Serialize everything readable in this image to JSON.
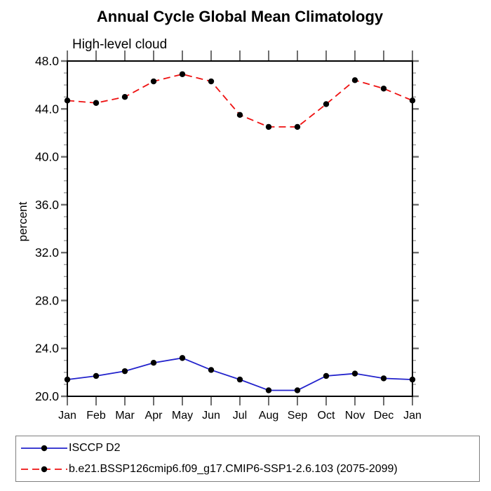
{
  "chart_data": {
    "type": "line",
    "title": "Annual Cycle Global Mean Climatology",
    "subtitle": "High-level cloud",
    "ylabel": "percent",
    "xlabel": "",
    "categories": [
      "Jan",
      "Feb",
      "Mar",
      "Apr",
      "May",
      "Jun",
      "Jul",
      "Aug",
      "Sep",
      "Oct",
      "Nov",
      "Dec",
      "Jan"
    ],
    "ylim": [
      20.0,
      48.0
    ],
    "y_major_ticks": [
      20.0,
      24.0,
      28.0,
      32.0,
      36.0,
      40.0,
      44.0,
      48.0
    ],
    "y_tick_labels": [
      "20.0",
      "24.0",
      "28.0",
      "32.0",
      "36.0",
      "40.0",
      "44.0",
      "48.0"
    ],
    "y_minor_tick_interval": 1.0,
    "grid": false,
    "legend_position": "bottom-box",
    "marker": "filled-circle",
    "marker_color": "#000000",
    "series": [
      {
        "name": "ISCCP D2",
        "color": "#2222cc",
        "line_style": "solid",
        "values": [
          21.4,
          21.7,
          22.1,
          22.8,
          23.2,
          22.2,
          21.4,
          20.5,
          20.5,
          21.7,
          21.9,
          21.5,
          21.4
        ]
      },
      {
        "name": "b.e21.BSSP126cmip6.f09_g17.CMIP6-SSP1-2.6.103 (2075-2099)",
        "color": "#ee1111",
        "line_style": "dashed",
        "values": [
          44.7,
          44.5,
          45.0,
          46.3,
          46.9,
          46.3,
          43.5,
          42.5,
          42.5,
          44.4,
          46.4,
          45.7,
          44.7
        ]
      }
    ]
  }
}
